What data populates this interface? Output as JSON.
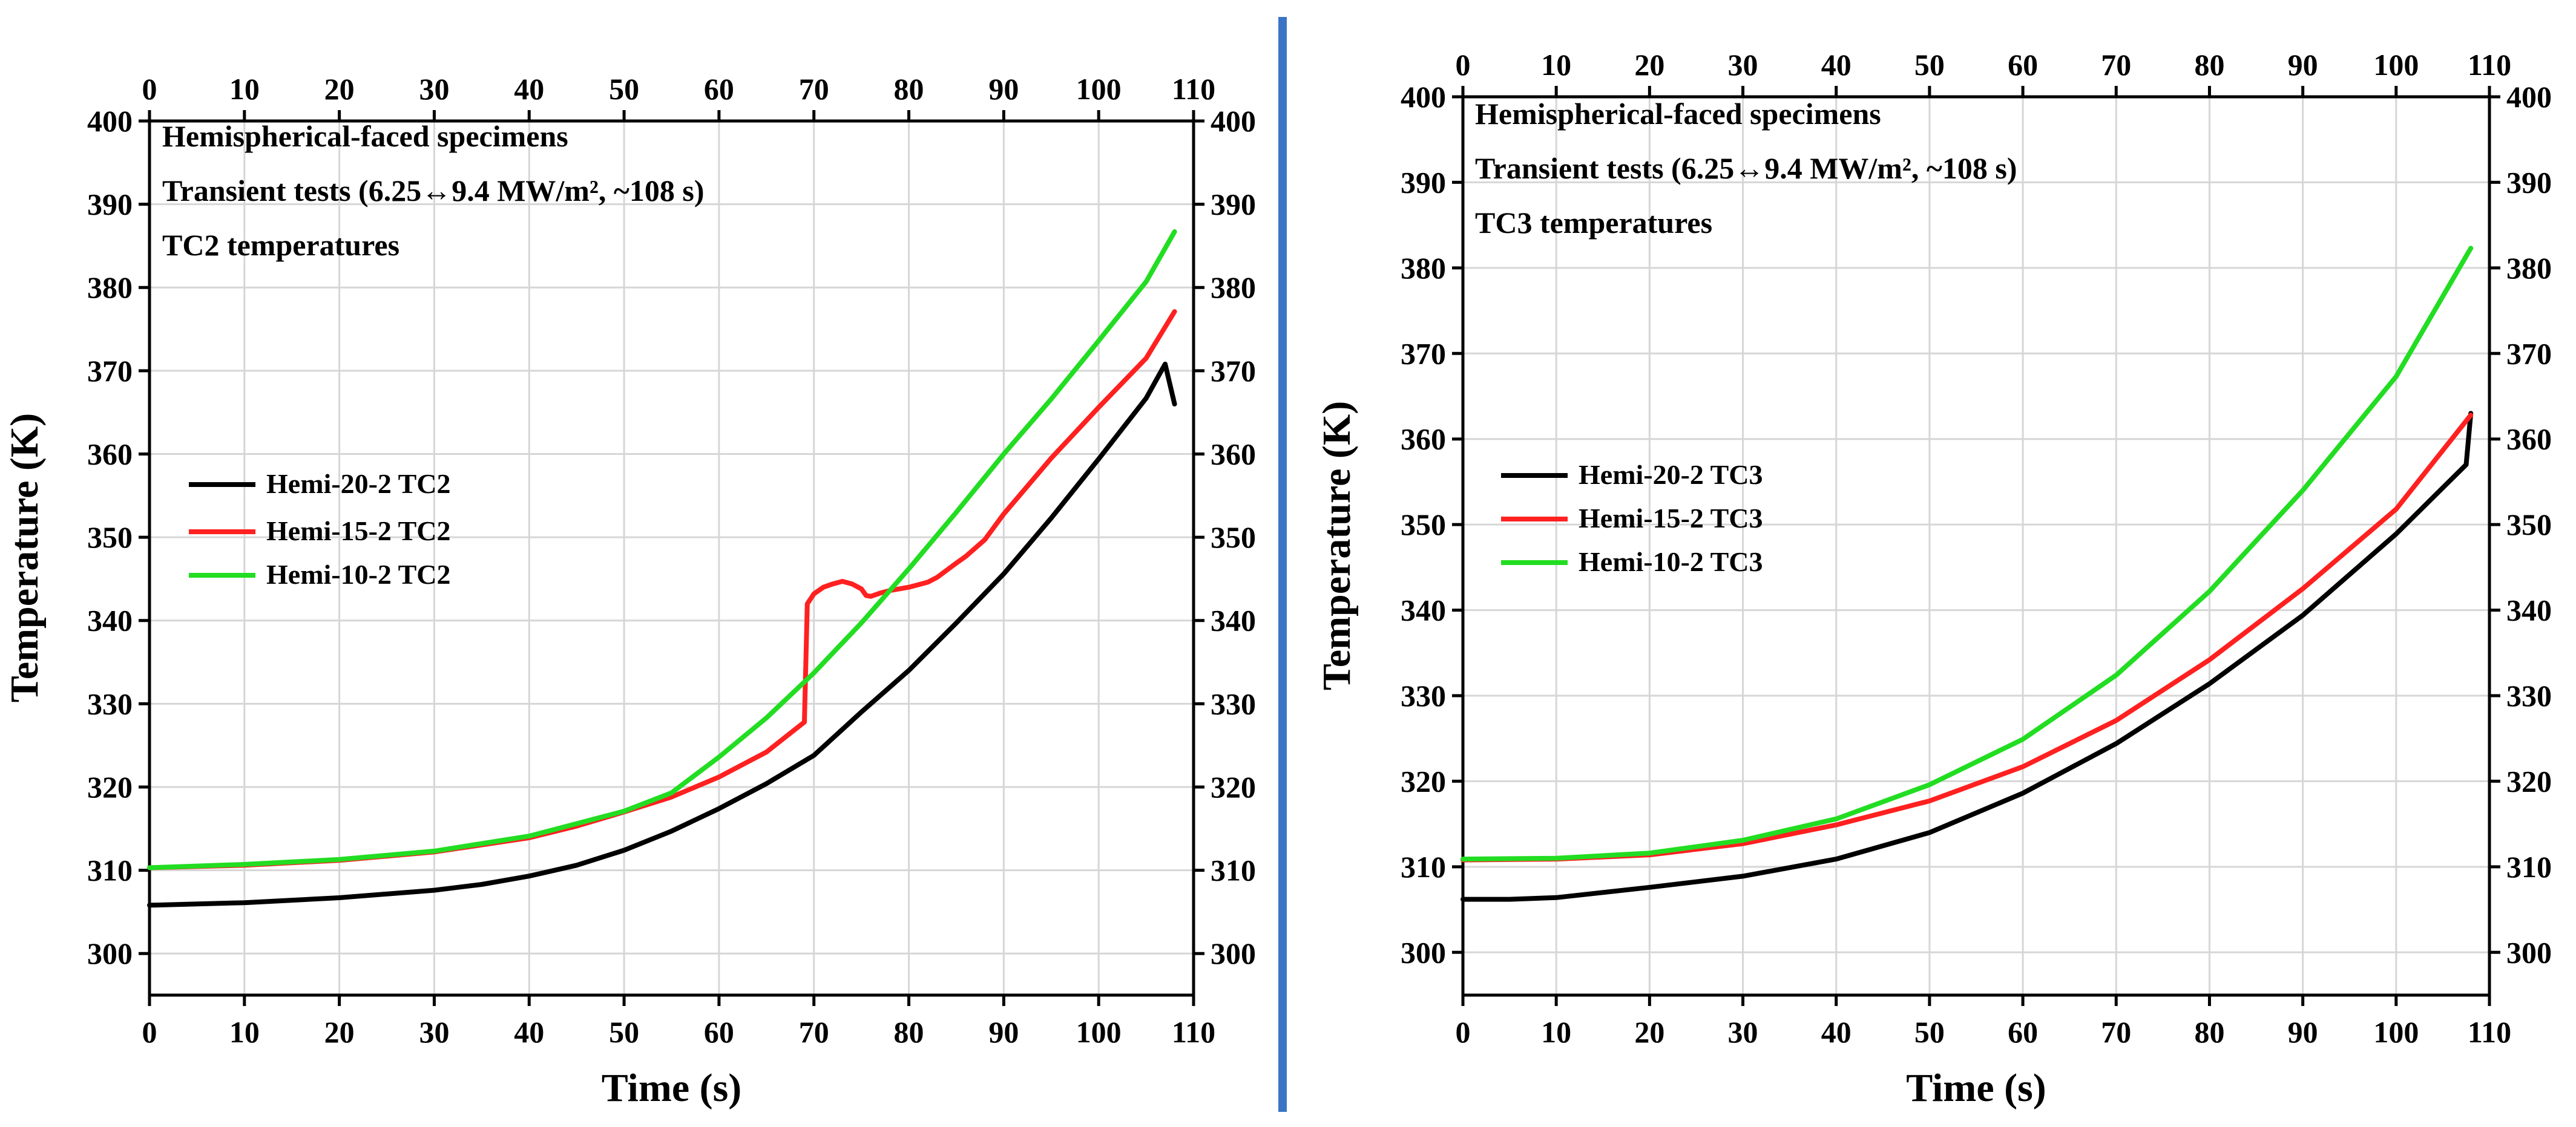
{
  "chart_data": [
    {
      "type": "line",
      "notes": [
        "Hemispherical-faced specimens",
        "Transient tests (6.25↔9.4 MW/m², ~108 s)",
        "TC2 temperatures"
      ],
      "xlabel": "Time (s)",
      "ylabel": "Temperature (K)",
      "xlim": [
        0,
        110
      ],
      "ylim": [
        295,
        400
      ],
      "xticks": [
        0,
        10,
        20,
        30,
        40,
        50,
        60,
        70,
        80,
        90,
        100,
        110
      ],
      "yticks": [
        300,
        310,
        320,
        330,
        340,
        350,
        360,
        370,
        380,
        390,
        400
      ],
      "mirror_axes": "top and right axes repeat the tick labels",
      "grid": true,
      "legend_position": "middle-left",
      "series": [
        {
          "name": "Hemi-20-2 TC2",
          "color": "#000000",
          "x": [
            0,
            10,
            20,
            30,
            35,
            40,
            45,
            50,
            55,
            60,
            65,
            70,
            75,
            80,
            85,
            90,
            95,
            100,
            105,
            107,
            108
          ],
          "y": [
            305.8,
            306.1,
            306.7,
            307.6,
            308.3,
            309.3,
            310.6,
            312.4,
            314.7,
            317.4,
            320.4,
            323.8,
            329.0,
            334.0,
            339.7,
            345.6,
            352.3,
            359.4,
            366.7,
            370.8,
            366.0
          ]
        },
        {
          "name": "Hemi-15-2 TC2",
          "color": "#ff2020",
          "x": [
            0,
            10,
            20,
            30,
            40,
            45,
            50,
            55,
            60,
            65,
            69,
            69.3,
            70,
            71,
            72,
            73,
            74,
            75,
            75.5,
            76,
            77,
            78,
            80,
            82,
            83,
            85,
            86,
            88,
            90,
            95,
            100,
            105,
            108
          ],
          "y": [
            310.3,
            310.6,
            311.2,
            312.2,
            313.9,
            315.3,
            317.0,
            318.8,
            321.2,
            324.2,
            327.8,
            342.0,
            343.2,
            344.0,
            344.4,
            344.7,
            344.4,
            343.8,
            343.0,
            342.9,
            343.3,
            343.6,
            344.0,
            344.6,
            345.2,
            346.9,
            347.7,
            349.7,
            352.8,
            359.5,
            365.6,
            371.5,
            377.1
          ]
        },
        {
          "name": "Hemi-10-2 TC2",
          "color": "#22dd22",
          "x": [
            0,
            10,
            20,
            30,
            40,
            50,
            55,
            60,
            65,
            70,
            75,
            80,
            85,
            90,
            95,
            100,
            105,
            108
          ],
          "y": [
            310.3,
            310.7,
            311.3,
            312.3,
            314.1,
            317.1,
            319.3,
            323.6,
            328.3,
            333.7,
            339.7,
            346.2,
            353.0,
            360.0,
            366.6,
            373.6,
            380.7,
            386.7
          ]
        }
      ]
    },
    {
      "type": "line",
      "notes": [
        "Hemispherical-faced specimens",
        "Transient tests (6.25↔9.4 MW/m², ~108 s)",
        "TC3 temperatures"
      ],
      "xlabel": "Time (s)",
      "ylabel": "Temperature (K)",
      "xlim": [
        0,
        110
      ],
      "ylim": [
        295,
        400
      ],
      "xticks": [
        0,
        10,
        20,
        30,
        40,
        50,
        60,
        70,
        80,
        90,
        100,
        110
      ],
      "yticks": [
        300,
        310,
        320,
        330,
        340,
        350,
        360,
        370,
        380,
        390,
        400
      ],
      "mirror_axes": "top and right axes repeat the tick labels",
      "grid": true,
      "legend_position": "middle-left",
      "series": [
        {
          "name": "Hemi-20-2 TC3",
          "color": "#000000",
          "x": [
            0,
            5,
            10,
            20,
            30,
            40,
            50,
            60,
            70,
            80,
            90,
            100,
            107.5,
            108
          ],
          "y": [
            306.2,
            306.2,
            306.4,
            307.6,
            308.9,
            310.9,
            314.0,
            318.6,
            324.4,
            331.4,
            339.4,
            348.9,
            357.0,
            363.0
          ]
        },
        {
          "name": "Hemi-15-2 TC3",
          "color": "#ff2020",
          "x": [
            0,
            10,
            20,
            30,
            40,
            50,
            60,
            70,
            80,
            90,
            100,
            108
          ],
          "y": [
            310.8,
            310.9,
            311.4,
            312.7,
            314.9,
            317.7,
            321.7,
            327.1,
            334.2,
            342.5,
            351.8,
            362.8
          ]
        },
        {
          "name": "Hemi-10-2 TC3",
          "color": "#22dd22",
          "x": [
            0,
            10,
            20,
            30,
            40,
            50,
            60,
            70,
            80,
            90,
            100,
            108
          ],
          "y": [
            310.9,
            311.0,
            311.6,
            313.1,
            315.6,
            319.6,
            324.9,
            332.4,
            342.2,
            354.0,
            367.3,
            382.3
          ]
        }
      ]
    }
  ]
}
